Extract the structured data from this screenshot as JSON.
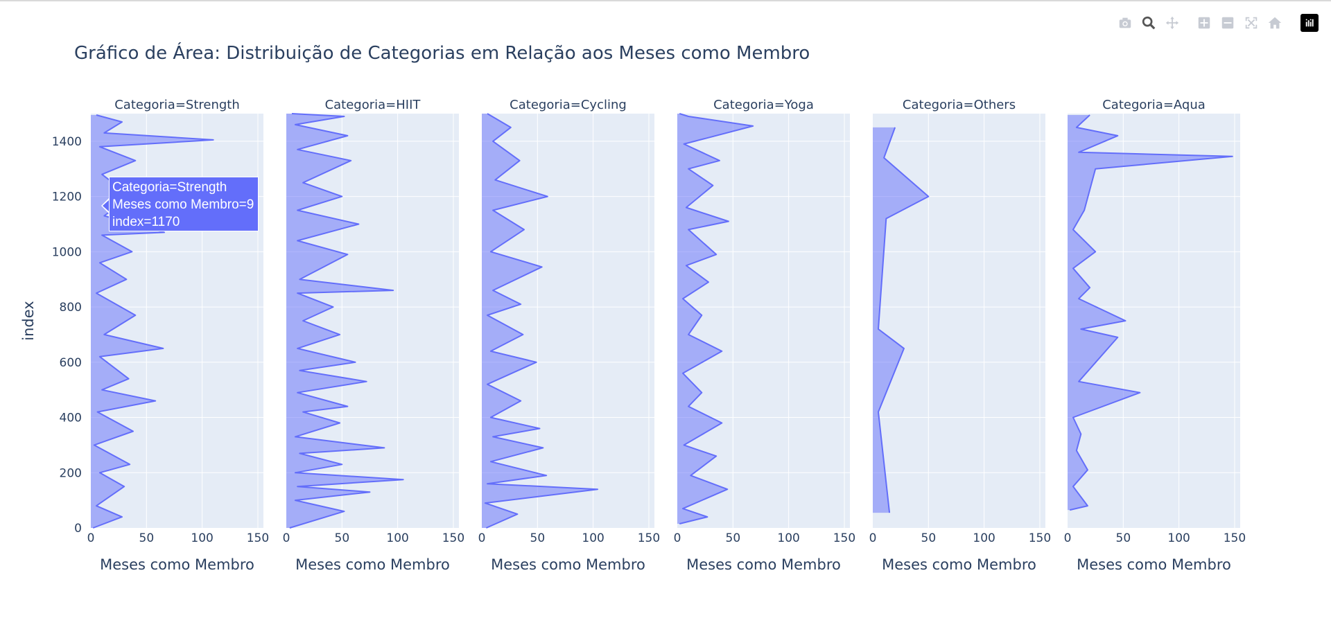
{
  "title": "Gráfico de Área: Distribuição de Categorias em Relação aos Meses como Membro",
  "modebar": {
    "icons": [
      "camera-icon",
      "zoom-icon",
      "pan-icon",
      "zoom-in-icon",
      "zoom-out-icon",
      "autoscale-icon",
      "home-icon",
      "plotly-logo-icon"
    ]
  },
  "tooltip": {
    "line1": "Categoria=Strength",
    "line2": "Meses como Membro=9",
    "line3": "index=1170"
  },
  "colors": {
    "line": "#636efa",
    "fill": "rgba(99,110,250,0.5)",
    "plot_bg": "#e5ecf6",
    "grid": "#ffffff",
    "text": "#2a3f5f"
  },
  "chart_data": {
    "type": "area",
    "orientation": "horizontal",
    "ylabel": "index",
    "xlabel": "Meses como Membro",
    "xlim": [
      0,
      155
    ],
    "ylim": [
      0,
      1500
    ],
    "xticks": [
      0,
      50,
      100,
      150
    ],
    "yticks": [
      0,
      200,
      400,
      600,
      800,
      1000,
      1200,
      1400
    ],
    "grid": true,
    "panels": [
      {
        "title": "Categoria=Strength",
        "points": [
          [
            2,
            0
          ],
          [
            28,
            40
          ],
          [
            5,
            80
          ],
          [
            30,
            150
          ],
          [
            8,
            200
          ],
          [
            35,
            230
          ],
          [
            3,
            300
          ],
          [
            38,
            350
          ],
          [
            6,
            420
          ],
          [
            58,
            460
          ],
          [
            10,
            500
          ],
          [
            34,
            540
          ],
          [
            8,
            620
          ],
          [
            65,
            650
          ],
          [
            12,
            700
          ],
          [
            40,
            770
          ],
          [
            5,
            850
          ],
          [
            32,
            900
          ],
          [
            8,
            960
          ],
          [
            37,
            1000
          ],
          [
            10,
            1060
          ],
          [
            66,
            1070
          ],
          [
            12,
            1130
          ],
          [
            36,
            1200
          ],
          [
            10,
            1280
          ],
          [
            40,
            1330
          ],
          [
            8,
            1380
          ],
          [
            110,
            1405
          ],
          [
            12,
            1430
          ],
          [
            28,
            1470
          ],
          [
            5,
            1495
          ]
        ]
      },
      {
        "title": "Categoria=HIIT",
        "points": [
          [
            3,
            0
          ],
          [
            52,
            60
          ],
          [
            8,
            100
          ],
          [
            75,
            130
          ],
          [
            10,
            150
          ],
          [
            105,
            175
          ],
          [
            8,
            200
          ],
          [
            50,
            230
          ],
          [
            12,
            270
          ],
          [
            88,
            290
          ],
          [
            8,
            330
          ],
          [
            48,
            380
          ],
          [
            15,
            420
          ],
          [
            55,
            440
          ],
          [
            10,
            490
          ],
          [
            72,
            530
          ],
          [
            12,
            570
          ],
          [
            62,
            600
          ],
          [
            10,
            650
          ],
          [
            48,
            700
          ],
          [
            15,
            750
          ],
          [
            42,
            800
          ],
          [
            10,
            850
          ],
          [
            96,
            860
          ],
          [
            12,
            900
          ],
          [
            55,
            990
          ],
          [
            10,
            1040
          ],
          [
            65,
            1100
          ],
          [
            10,
            1150
          ],
          [
            50,
            1200
          ],
          [
            15,
            1250
          ],
          [
            58,
            1330
          ],
          [
            10,
            1370
          ],
          [
            55,
            1420
          ],
          [
            8,
            1460
          ],
          [
            52,
            1490
          ],
          [
            5,
            1500
          ]
        ]
      },
      {
        "title": "Categoria=Cycling",
        "points": [
          [
            4,
            0
          ],
          [
            32,
            50
          ],
          [
            3,
            90
          ],
          [
            104,
            140
          ],
          [
            5,
            160
          ],
          [
            58,
            190
          ],
          [
            8,
            240
          ],
          [
            55,
            290
          ],
          [
            10,
            330
          ],
          [
            52,
            360
          ],
          [
            8,
            400
          ],
          [
            35,
            460
          ],
          [
            5,
            520
          ],
          [
            49,
            600
          ],
          [
            8,
            640
          ],
          [
            37,
            700
          ],
          [
            5,
            770
          ],
          [
            35,
            810
          ],
          [
            10,
            860
          ],
          [
            54,
            945
          ],
          [
            8,
            1000
          ],
          [
            38,
            1080
          ],
          [
            10,
            1150
          ],
          [
            59,
            1200
          ],
          [
            12,
            1260
          ],
          [
            34,
            1330
          ],
          [
            10,
            1400
          ],
          [
            26,
            1450
          ],
          [
            5,
            1500
          ]
        ]
      },
      {
        "title": "Categoria=Yoga",
        "points": [
          [
            2,
            15
          ],
          [
            27,
            40
          ],
          [
            5,
            70
          ],
          [
            45,
            140
          ],
          [
            12,
            190
          ],
          [
            35,
            260
          ],
          [
            6,
            300
          ],
          [
            40,
            380
          ],
          [
            10,
            440
          ],
          [
            22,
            490
          ],
          [
            5,
            560
          ],
          [
            40,
            640
          ],
          [
            10,
            700
          ],
          [
            22,
            770
          ],
          [
            5,
            830
          ],
          [
            28,
            890
          ],
          [
            8,
            950
          ],
          [
            35,
            990
          ],
          [
            10,
            1080
          ],
          [
            46,
            1110
          ],
          [
            8,
            1160
          ],
          [
            32,
            1240
          ],
          [
            10,
            1300
          ],
          [
            38,
            1330
          ],
          [
            6,
            1390
          ],
          [
            68,
            1455
          ],
          [
            10,
            1490
          ],
          [
            2,
            1500
          ]
        ]
      },
      {
        "title": "Categoria=Others",
        "points": [
          [
            15,
            55
          ],
          [
            5,
            420
          ],
          [
            28,
            650
          ],
          [
            5,
            720
          ],
          [
            12,
            1120
          ],
          [
            50,
            1200
          ],
          [
            10,
            1340
          ],
          [
            20,
            1450
          ]
        ]
      },
      {
        "title": "Categoria=Aqua",
        "points": [
          [
            2,
            65
          ],
          [
            18,
            80
          ],
          [
            5,
            150
          ],
          [
            18,
            210
          ],
          [
            8,
            280
          ],
          [
            12,
            340
          ],
          [
            5,
            400
          ],
          [
            65,
            490
          ],
          [
            10,
            530
          ],
          [
            45,
            690
          ],
          [
            12,
            720
          ],
          [
            52,
            750
          ],
          [
            10,
            830
          ],
          [
            20,
            870
          ],
          [
            5,
            940
          ],
          [
            25,
            1000
          ],
          [
            5,
            1080
          ],
          [
            15,
            1150
          ],
          [
            25,
            1300
          ],
          [
            148,
            1345
          ],
          [
            10,
            1360
          ],
          [
            45,
            1420
          ],
          [
            8,
            1450
          ],
          [
            20,
            1495
          ]
        ]
      }
    ]
  }
}
